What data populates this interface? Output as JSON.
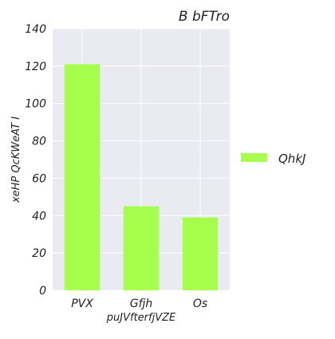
{
  "chart_data": {
    "type": "bar",
    "title": "B bFTro",
    "xlabel": "puJVfterfjVZE",
    "ylabel": "xeHP QcKWeAT I",
    "categories": [
      "PVX",
      "Gfjh",
      "Os"
    ],
    "series": [
      {
        "name": "QhkJ",
        "values": [
          121,
          45,
          39
        ]
      }
    ],
    "ylim": [
      0,
      140
    ],
    "yticks": [
      0,
      20,
      40,
      60,
      80,
      100,
      120,
      140
    ],
    "grid": true,
    "legend_position": "right",
    "colors": {
      "bar": "#a6ff4d",
      "plot_background": "#eaeaf2",
      "grid": "#ffffff"
    }
  }
}
